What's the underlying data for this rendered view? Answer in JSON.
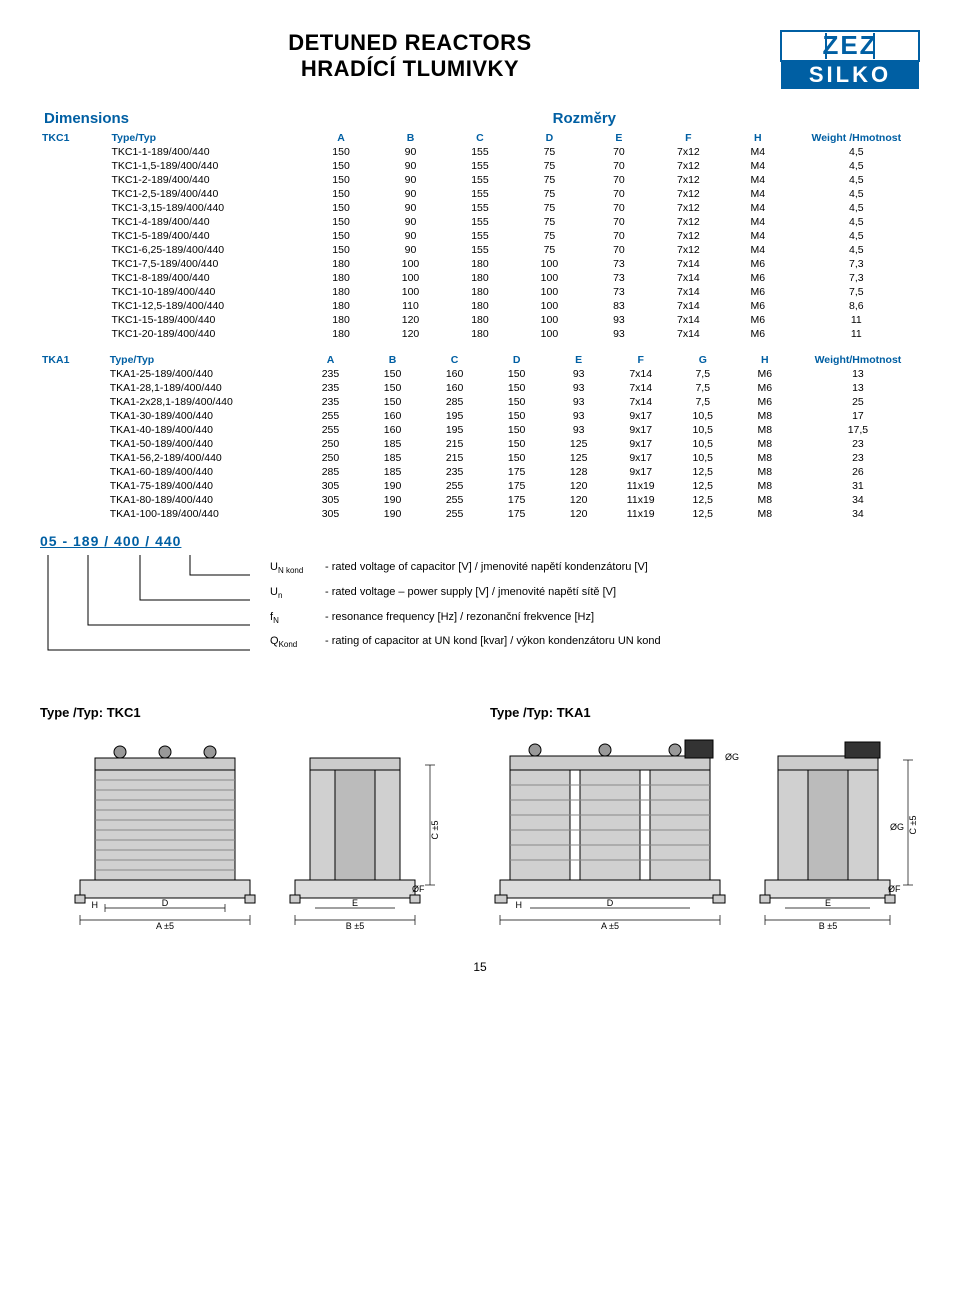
{
  "title_line1": "DETUNED REACTORS",
  "title_line2": "HRADÍCÍ TLUMIVKY",
  "logo": {
    "top": "ZEZ",
    "bottom": "SILKO",
    "stroke": "#005fa3",
    "fill_bg": "#ffffff"
  },
  "dimensions_label": "Dimensions",
  "rozmery_label": "Rozměry",
  "accent_color": "#005fa3",
  "tkc1": {
    "label": "TKC1",
    "headers": [
      "Type/Typ",
      "A",
      "B",
      "C",
      "D",
      "E",
      "F",
      "H",
      "Weight /Hmotnost"
    ],
    "col_widths": [
      "60px",
      "170px",
      "60px",
      "60px",
      "60px",
      "60px",
      "60px",
      "60px",
      "60px",
      "110px"
    ],
    "rows": [
      [
        "TKC1-1-189/400/440",
        "150",
        "90",
        "155",
        "75",
        "70",
        "7x12",
        "M4",
        "4,5"
      ],
      [
        "TKC1-1,5-189/400/440",
        "150",
        "90",
        "155",
        "75",
        "70",
        "7x12",
        "M4",
        "4,5"
      ],
      [
        "TKC1-2-189/400/440",
        "150",
        "90",
        "155",
        "75",
        "70",
        "7x12",
        "M4",
        "4,5"
      ],
      [
        "TKC1-2,5-189/400/440",
        "150",
        "90",
        "155",
        "75",
        "70",
        "7x12",
        "M4",
        "4,5"
      ],
      [
        "TKC1-3,15-189/400/440",
        "150",
        "90",
        "155",
        "75",
        "70",
        "7x12",
        "M4",
        "4,5"
      ],
      [
        "TKC1-4-189/400/440",
        "150",
        "90",
        "155",
        "75",
        "70",
        "7x12",
        "M4",
        "4,5"
      ],
      [
        "TKC1-5-189/400/440",
        "150",
        "90",
        "155",
        "75",
        "70",
        "7x12",
        "M4",
        "4,5"
      ],
      [
        "TKC1-6,25-189/400/440",
        "150",
        "90",
        "155",
        "75",
        "70",
        "7x12",
        "M4",
        "4,5"
      ],
      [
        "TKC1-7,5-189/400/440",
        "180",
        "100",
        "180",
        "100",
        "73",
        "7x14",
        "M6",
        "7,3"
      ],
      [
        "TKC1-8-189/400/440",
        "180",
        "100",
        "180",
        "100",
        "73",
        "7x14",
        "M6",
        "7,3"
      ],
      [
        "TKC1-10-189/400/440",
        "180",
        "100",
        "180",
        "100",
        "73",
        "7x14",
        "M6",
        "7,5"
      ],
      [
        "TKC1-12,5-189/400/440",
        "180",
        "110",
        "180",
        "100",
        "83",
        "7x14",
        "M6",
        "8,6"
      ],
      [
        "TKC1-15-189/400/440",
        "180",
        "120",
        "180",
        "100",
        "93",
        "7x14",
        "M6",
        "11"
      ],
      [
        "TKC1-20-189/400/440",
        "180",
        "120",
        "180",
        "100",
        "93",
        "7x14",
        "M6",
        "11"
      ]
    ]
  },
  "tka1": {
    "label": "TKA1",
    "headers": [
      "Type/Typ",
      "A",
      "B",
      "C",
      "D",
      "E",
      "F",
      "G",
      "H",
      "Weight/Hmotnost"
    ],
    "col_widths": [
      "60px",
      "170px",
      "55px",
      "55px",
      "55px",
      "55px",
      "55px",
      "55px",
      "55px",
      "55px",
      "110px"
    ],
    "rows": [
      [
        "TKA1-25-189/400/440",
        "235",
        "150",
        "160",
        "150",
        "93",
        "7x14",
        "7,5",
        "M6",
        "13"
      ],
      [
        "TKA1-28,1-189/400/440",
        "235",
        "150",
        "160",
        "150",
        "93",
        "7x14",
        "7,5",
        "M6",
        "13"
      ],
      [
        "TKA1-2x28,1-189/400/440",
        "235",
        "150",
        "285",
        "150",
        "93",
        "7x14",
        "7,5",
        "M6",
        "25"
      ],
      [
        "TKA1-30-189/400/440",
        "255",
        "160",
        "195",
        "150",
        "93",
        "9x17",
        "10,5",
        "M8",
        "17"
      ],
      [
        "TKA1-40-189/400/440",
        "255",
        "160",
        "195",
        "150",
        "93",
        "9x17",
        "10,5",
        "M8",
        "17,5"
      ],
      [
        "TKA1-50-189/400/440",
        "250",
        "185",
        "215",
        "150",
        "125",
        "9x17",
        "10,5",
        "M8",
        "23"
      ],
      [
        "TKA1-56,2-189/400/440",
        "250",
        "185",
        "215",
        "150",
        "125",
        "9x17",
        "10,5",
        "M8",
        "23"
      ],
      [
        "TKA1-60-189/400/440",
        "285",
        "185",
        "235",
        "175",
        "128",
        "9x17",
        "12,5",
        "M8",
        "26"
      ],
      [
        "TKA1-75-189/400/440",
        "305",
        "190",
        "255",
        "175",
        "120",
        "11x19",
        "12,5",
        "M8",
        "31"
      ],
      [
        "TKA1-80-189/400/440",
        "305",
        "190",
        "255",
        "175",
        "120",
        "11x19",
        "12,5",
        "M8",
        "34"
      ],
      [
        "TKA1-100-189/400/440",
        "305",
        "190",
        "255",
        "175",
        "120",
        "11x19",
        "12,5",
        "M8",
        "34"
      ]
    ]
  },
  "code": {
    "pattern": "05 - 189  / 400  / 440",
    "legend": [
      {
        "sym": "U<sub>N kond</sub>",
        "desc": "- rated voltage of capacitor [V] / jmenovité napětí kondenzátoru [V]"
      },
      {
        "sym": "U<sub>n</sub>",
        "desc": "- rated voltage – power supply [V] / jmenovité napětí sítě [V]"
      },
      {
        "sym": "f<sub>N</sub>",
        "desc": "- resonance frequency [Hz] / rezonanční frekvence [Hz]"
      },
      {
        "sym": "Q<sub>Kond</sub>",
        "desc": "- rating of capacitor at UN kond  [kvar] / výkon kondenzátoru UN kond"
      }
    ]
  },
  "drawings": {
    "tkc1_title": "Type /Typ: TKC1",
    "tka1_title": "Type /Typ: TKA1",
    "dim_labels": {
      "A": "A ±5",
      "B": "B ±5",
      "C": "C ±5",
      "D": "D",
      "E": "E",
      "H": "H",
      "F": "ØF",
      "G": "ØG"
    }
  },
  "page_number": "15"
}
